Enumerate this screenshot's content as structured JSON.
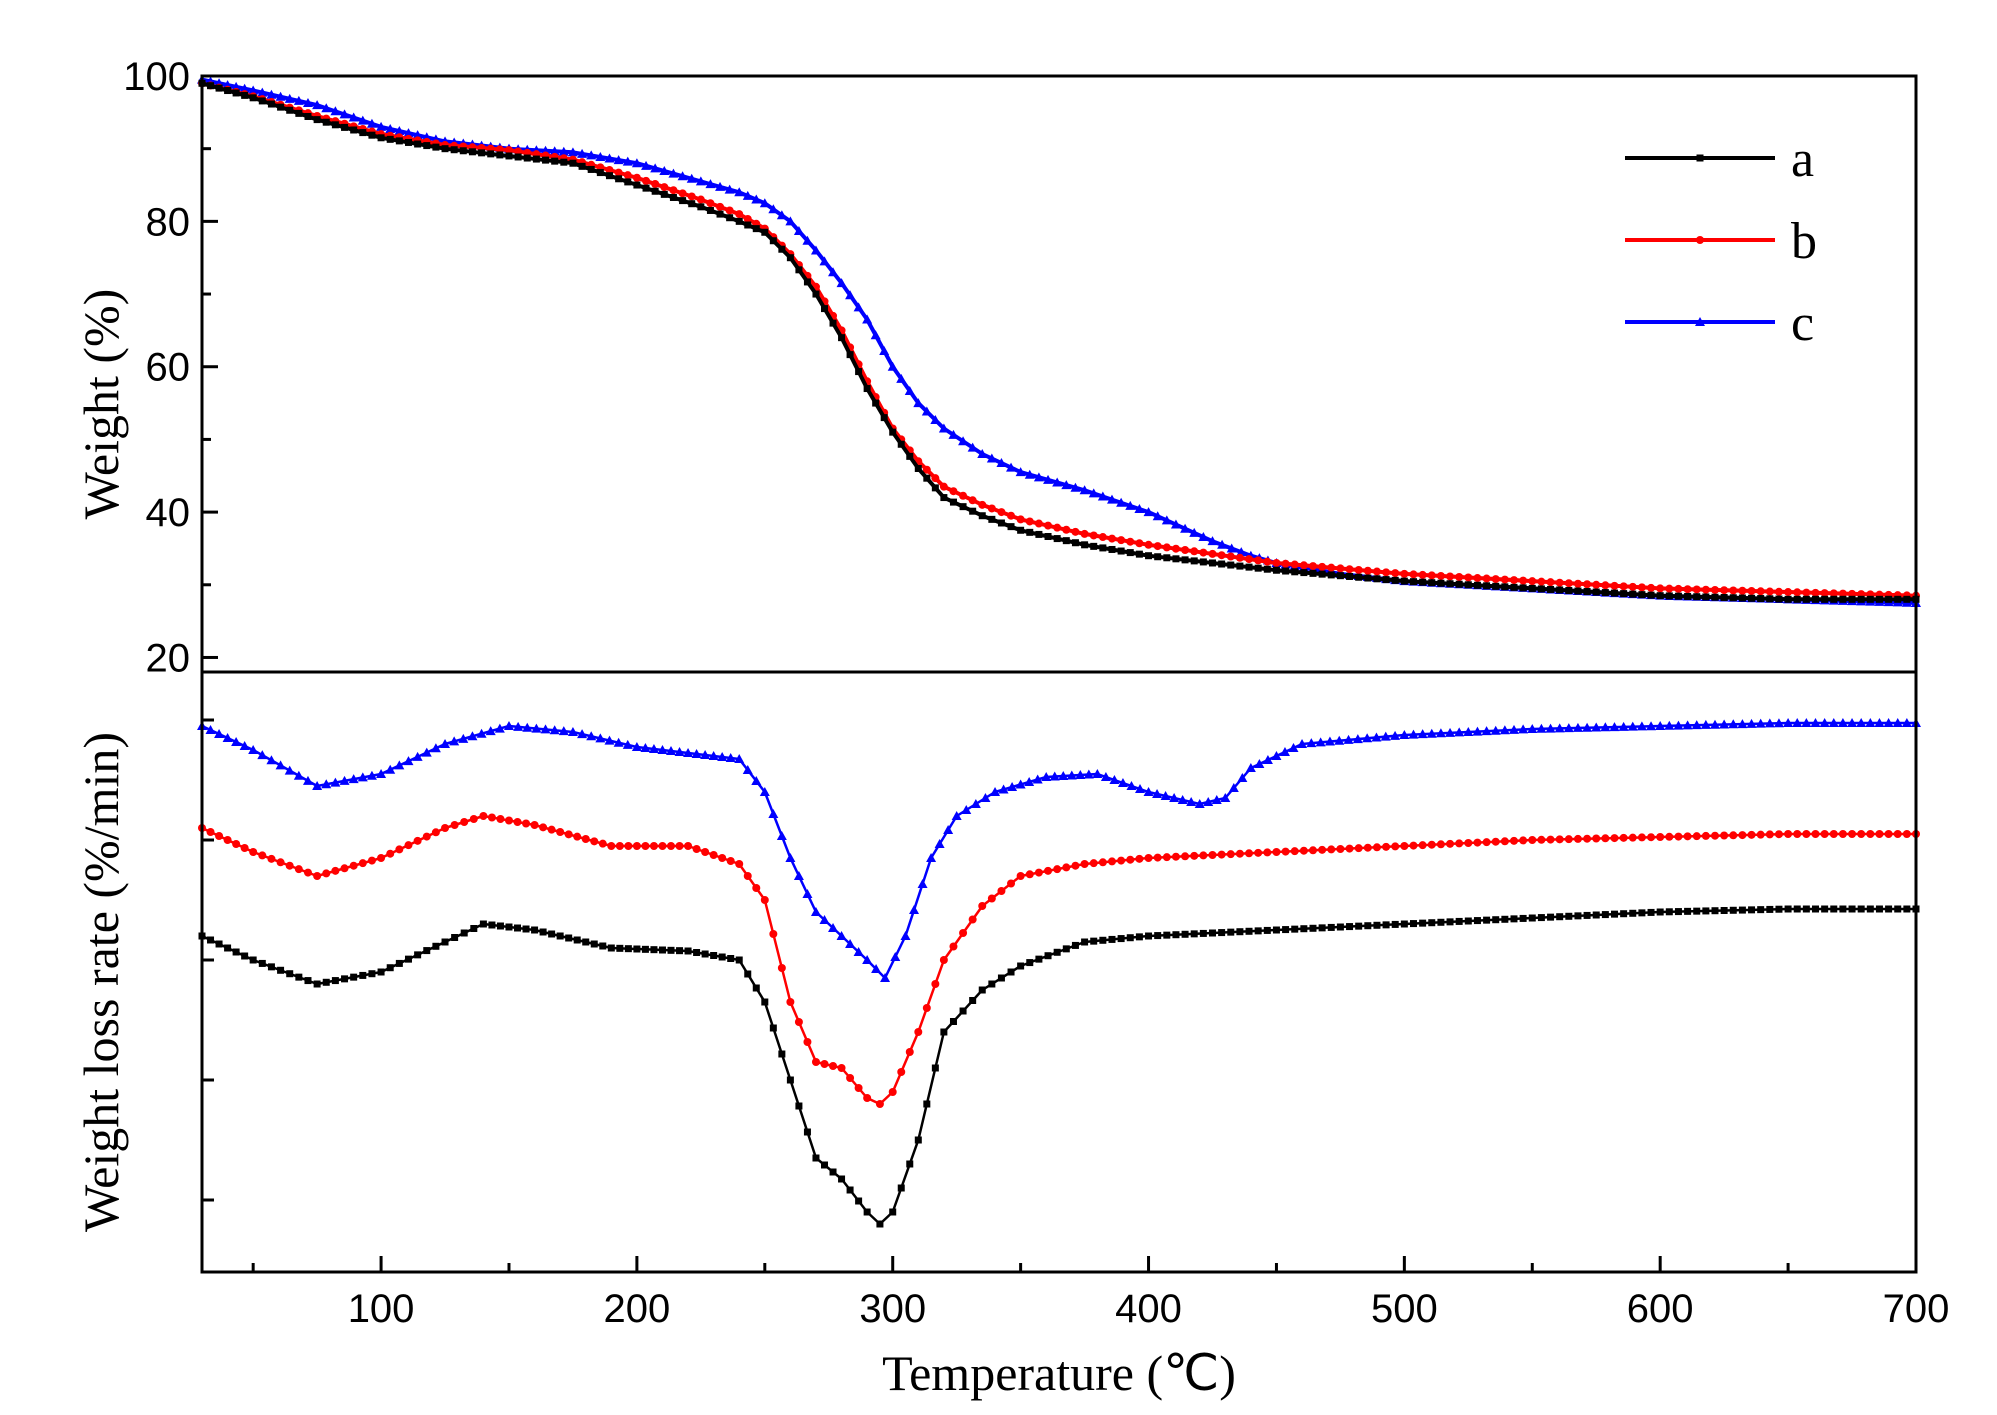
{
  "chart_data": {
    "type": "line",
    "x_axis": {
      "label": "Temperature (℃)",
      "range": [
        30,
        700
      ],
      "ticks": [
        100,
        200,
        300,
        400,
        500,
        600,
        700
      ],
      "tick_labels": [
        "100",
        "200",
        "300",
        "400",
        "500",
        "600",
        "700"
      ]
    },
    "panels": [
      {
        "name": "weight",
        "ylabel": "Weight (%)",
        "ylim": [
          18,
          100
        ],
        "ticks": [
          20,
          40,
          60,
          80,
          100
        ],
        "tick_labels": [
          "20",
          "40",
          "60",
          "80",
          "100"
        ]
      },
      {
        "name": "weight-loss-rate",
        "ylabel": "Weight loss rate (%/min)",
        "ylim": [
          0,
          100
        ],
        "tick_labels_shown": false,
        "minor_tick_values": [
          12,
          32,
          52,
          72,
          92
        ]
      }
    ],
    "legend": {
      "position": "top-right",
      "entries": [
        {
          "label": "a",
          "color": "#000000",
          "marker": "square"
        },
        {
          "label": "b",
          "color": "#ff0000",
          "marker": "circle"
        },
        {
          "label": "c",
          "color": "#0000ff",
          "marker": "triangle"
        }
      ]
    },
    "series": [
      {
        "name": "a",
        "color": "#000000",
        "marker": "square",
        "tga": [
          [
            30,
            99
          ],
          [
            50,
            97
          ],
          [
            75,
            94
          ],
          [
            100,
            91.5
          ],
          [
            125,
            90
          ],
          [
            150,
            89
          ],
          [
            175,
            88
          ],
          [
            200,
            85
          ],
          [
            225,
            82
          ],
          [
            240,
            80
          ],
          [
            250,
            78.5
          ],
          [
            260,
            75
          ],
          [
            270,
            70
          ],
          [
            280,
            64
          ],
          [
            290,
            57
          ],
          [
            300,
            51
          ],
          [
            310,
            46
          ],
          [
            320,
            42
          ],
          [
            335,
            39.5
          ],
          [
            350,
            37.5
          ],
          [
            375,
            35.5
          ],
          [
            400,
            34
          ],
          [
            450,
            32
          ],
          [
            500,
            30.5
          ],
          [
            550,
            29.5
          ],
          [
            600,
            28.5
          ],
          [
            650,
            28
          ],
          [
            700,
            28
          ]
        ],
        "dtg": [
          [
            30,
            56
          ],
          [
            50,
            52
          ],
          [
            75,
            48
          ],
          [
            100,
            50
          ],
          [
            125,
            55
          ],
          [
            140,
            58
          ],
          [
            160,
            57
          ],
          [
            190,
            54
          ],
          [
            220,
            53.5
          ],
          [
            240,
            52
          ],
          [
            250,
            45
          ],
          [
            260,
            32
          ],
          [
            270,
            19
          ],
          [
            280,
            15.5
          ],
          [
            290,
            10
          ],
          [
            295,
            8
          ],
          [
            300,
            10
          ],
          [
            310,
            22
          ],
          [
            320,
            40
          ],
          [
            335,
            47
          ],
          [
            350,
            51
          ],
          [
            375,
            55
          ],
          [
            400,
            56
          ],
          [
            450,
            57
          ],
          [
            500,
            58
          ],
          [
            550,
            59
          ],
          [
            600,
            60
          ],
          [
            650,
            60.5
          ],
          [
            700,
            60.5
          ]
        ]
      },
      {
        "name": "b",
        "color": "#ff0000",
        "marker": "circle",
        "tga": [
          [
            30,
            99
          ],
          [
            50,
            97.2
          ],
          [
            75,
            94.5
          ],
          [
            100,
            92
          ],
          [
            125,
            90.5
          ],
          [
            150,
            89.8
          ],
          [
            175,
            88.5
          ],
          [
            200,
            86
          ],
          [
            225,
            83
          ],
          [
            240,
            81
          ],
          [
            250,
            79
          ],
          [
            260,
            75.5
          ],
          [
            270,
            71
          ],
          [
            280,
            65
          ],
          [
            290,
            58
          ],
          [
            300,
            51.5
          ],
          [
            310,
            47
          ],
          [
            320,
            43.5
          ],
          [
            335,
            41
          ],
          [
            350,
            39
          ],
          [
            375,
            37
          ],
          [
            400,
            35.5
          ],
          [
            450,
            33
          ],
          [
            500,
            31.5
          ],
          [
            550,
            30.5
          ],
          [
            600,
            29.5
          ],
          [
            650,
            29
          ],
          [
            700,
            28.5
          ]
        ],
        "dtg": [
          [
            30,
            74
          ],
          [
            50,
            70
          ],
          [
            75,
            66
          ],
          [
            100,
            69
          ],
          [
            125,
            74
          ],
          [
            140,
            76
          ],
          [
            160,
            74.5
          ],
          [
            190,
            71
          ],
          [
            220,
            71
          ],
          [
            240,
            68
          ],
          [
            250,
            62
          ],
          [
            260,
            45
          ],
          [
            270,
            35
          ],
          [
            280,
            34
          ],
          [
            290,
            29
          ],
          [
            295,
            28
          ],
          [
            300,
            30
          ],
          [
            310,
            40
          ],
          [
            320,
            52
          ],
          [
            335,
            61
          ],
          [
            350,
            66
          ],
          [
            375,
            68
          ],
          [
            400,
            69
          ],
          [
            450,
            70
          ],
          [
            500,
            71
          ],
          [
            550,
            72
          ],
          [
            600,
            72.5
          ],
          [
            650,
            73
          ],
          [
            700,
            73
          ]
        ]
      },
      {
        "name": "c",
        "color": "#0000ff",
        "marker": "triangle",
        "tga": [
          [
            30,
            99.5
          ],
          [
            50,
            98
          ],
          [
            75,
            96
          ],
          [
            100,
            93
          ],
          [
            125,
            91
          ],
          [
            150,
            90
          ],
          [
            175,
            89.5
          ],
          [
            200,
            88
          ],
          [
            225,
            85.5
          ],
          [
            240,
            84
          ],
          [
            250,
            82.5
          ],
          [
            260,
            80
          ],
          [
            270,
            76
          ],
          [
            280,
            71.5
          ],
          [
            290,
            66.5
          ],
          [
            300,
            60
          ],
          [
            310,
            55
          ],
          [
            320,
            51.5
          ],
          [
            335,
            48
          ],
          [
            350,
            45.5
          ],
          [
            375,
            43
          ],
          [
            400,
            40
          ],
          [
            425,
            36
          ],
          [
            440,
            34
          ],
          [
            450,
            33
          ],
          [
            475,
            31.5
          ],
          [
            500,
            30.5
          ],
          [
            550,
            29.5
          ],
          [
            600,
            28.5
          ],
          [
            650,
            28
          ],
          [
            700,
            27.5
          ]
        ],
        "dtg": [
          [
            30,
            91
          ],
          [
            50,
            87
          ],
          [
            75,
            81
          ],
          [
            100,
            83
          ],
          [
            125,
            88
          ],
          [
            150,
            91
          ],
          [
            175,
            90
          ],
          [
            200,
            87.5
          ],
          [
            220,
            86.5
          ],
          [
            240,
            85.5
          ],
          [
            250,
            80
          ],
          [
            260,
            69
          ],
          [
            270,
            60
          ],
          [
            280,
            56
          ],
          [
            290,
            52
          ],
          [
            297,
            49
          ],
          [
            305,
            56
          ],
          [
            315,
            69
          ],
          [
            325,
            76
          ],
          [
            340,
            80
          ],
          [
            360,
            82.5
          ],
          [
            380,
            83
          ],
          [
            400,
            80
          ],
          [
            420,
            78
          ],
          [
            430,
            79
          ],
          [
            440,
            84
          ],
          [
            460,
            88
          ],
          [
            500,
            89.5
          ],
          [
            550,
            90.5
          ],
          [
            600,
            91
          ],
          [
            650,
            91.5
          ],
          [
            700,
            91.5
          ]
        ]
      }
    ]
  }
}
